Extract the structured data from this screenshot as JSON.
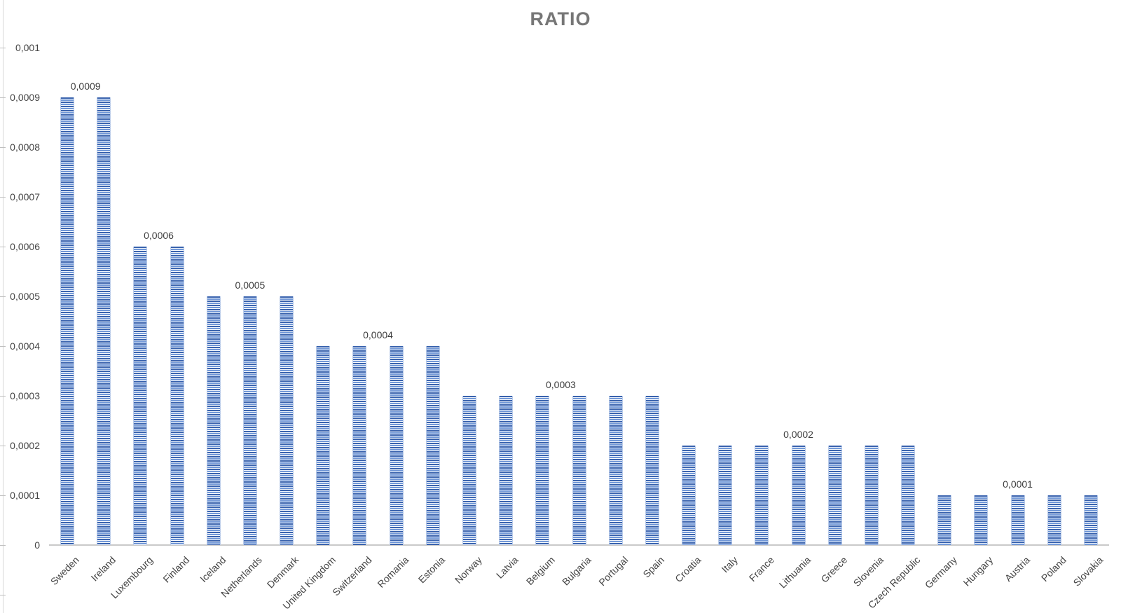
{
  "chart_data": {
    "type": "bar",
    "title": "RATIO",
    "xlabel": "",
    "ylabel": "",
    "grid": false,
    "legend": false,
    "number_format": "comma-decimal",
    "bar_style": {
      "fill_pattern": "horizontal-stripes",
      "color": "#4472C4"
    },
    "categories": [
      "Sweden",
      "Ireland",
      "Luxembourg",
      "Finland",
      "Iceland",
      "Netherlands",
      "Denmark",
      "United Kingdom",
      "Switzerland",
      "Romania",
      "Estonia",
      "Norway",
      "Latvia",
      "Belgium",
      "Bulgaria",
      "Portugal",
      "Spain",
      "Croatia",
      "Italy",
      "France",
      "Lithuania",
      "Greece",
      "Slovenia",
      "Czech Republic",
      "Germany",
      "Hungary",
      "Austria",
      "Poland",
      "Slovakia"
    ],
    "values": [
      0.0009,
      0.0009,
      0.0006,
      0.0006,
      0.0005,
      0.0005,
      0.0005,
      0.0004,
      0.0004,
      0.0004,
      0.0004,
      0.0003,
      0.0003,
      0.0003,
      0.0003,
      0.0003,
      0.0003,
      0.0002,
      0.0002,
      0.0002,
      0.0002,
      0.0002,
      0.0002,
      0.0002,
      0.0001,
      0.0001,
      0.0001,
      0.0001,
      0.0001
    ],
    "data_labels": [
      {
        "text": "0,0009",
        "from": 0,
        "to": 1
      },
      {
        "text": "0,0006",
        "from": 2,
        "to": 3
      },
      {
        "text": "0,0005",
        "from": 4,
        "to": 6
      },
      {
        "text": "0,0004",
        "from": 7,
        "to": 10
      },
      {
        "text": "0,0003",
        "from": 11,
        "to": 16
      },
      {
        "text": "0,0002",
        "from": 17,
        "to": 23
      },
      {
        "text": "0,0001",
        "from": 24,
        "to": 28
      }
    ],
    "y_axis": {
      "min": 0,
      "max": 0.001,
      "step": 0.0001,
      "tick_labels": [
        "0",
        "0,0001",
        "0,0002",
        "0,0003",
        "0,0004",
        "0,0005",
        "0,0006",
        "0,0007",
        "0,0008",
        "0,0009",
        "0,001"
      ]
    }
  }
}
